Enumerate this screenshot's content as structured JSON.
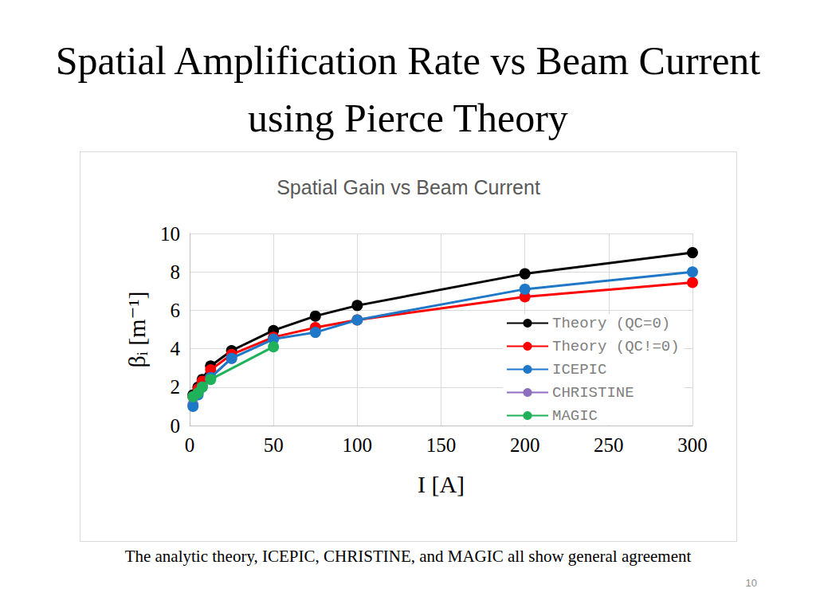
{
  "slide": {
    "title": "Spatial Amplification Rate vs Beam Current using Pierce Theory",
    "caption": "The analytic theory, ICEPIC, CHRISTINE, and MAGIC all show general agreement",
    "page_number": 10
  },
  "chart_data": {
    "type": "line",
    "title": "Spatial Gain vs Beam Current",
    "x_label": "I [A]",
    "y_label": "βᵢ [m⁻¹]",
    "xlim": [
      0,
      300
    ],
    "xticks": [
      0,
      50,
      100,
      150,
      200,
      250,
      300
    ],
    "ylim": [
      0,
      10
    ],
    "yticks": [
      0,
      2,
      4,
      6,
      8,
      10
    ],
    "grid": true,
    "legend": "right",
    "marker": "circle",
    "line_style": "solid",
    "series": [
      {
        "name": "Theory (QC=0)",
        "color": "#000000",
        "x": [
          2,
          5,
          7.5,
          12.5,
          25,
          50,
          75,
          100,
          200,
          300
        ],
        "values": [
          1.6,
          2.0,
          2.4,
          3.1,
          3.9,
          4.95,
          5.7,
          6.25,
          7.9,
          9.0
        ]
      },
      {
        "name": "Theory (QC!=0)",
        "color": "#ff0000",
        "x": [
          2,
          5,
          7.5,
          12.5,
          25,
          50,
          75,
          100,
          200,
          300
        ],
        "values": [
          1.5,
          1.9,
          2.3,
          2.9,
          3.7,
          4.6,
          5.1,
          5.5,
          6.7,
          7.45
        ]
      },
      {
        "name": "ICEPIC",
        "color": "#1f77c8",
        "x": [
          2,
          5,
          7.5,
          12.5,
          25,
          50,
          75,
          100,
          200,
          300
        ],
        "values": [
          1.0,
          1.6,
          2.0,
          2.5,
          3.5,
          4.5,
          4.85,
          5.5,
          7.1,
          8.0
        ]
      },
      {
        "name": "CHRISTINE",
        "color": "#8e6fbf",
        "x": [
          2,
          5,
          7.5,
          12.5,
          25
        ],
        "values": [
          1.1,
          1.7,
          2.1,
          2.5,
          3.5
        ]
      },
      {
        "name": "MAGIC",
        "color": "#1fb25a",
        "x": [
          2,
          5,
          7.5,
          12.5,
          50
        ],
        "values": [
          1.5,
          1.7,
          2.0,
          2.4,
          4.1
        ]
      }
    ]
  }
}
